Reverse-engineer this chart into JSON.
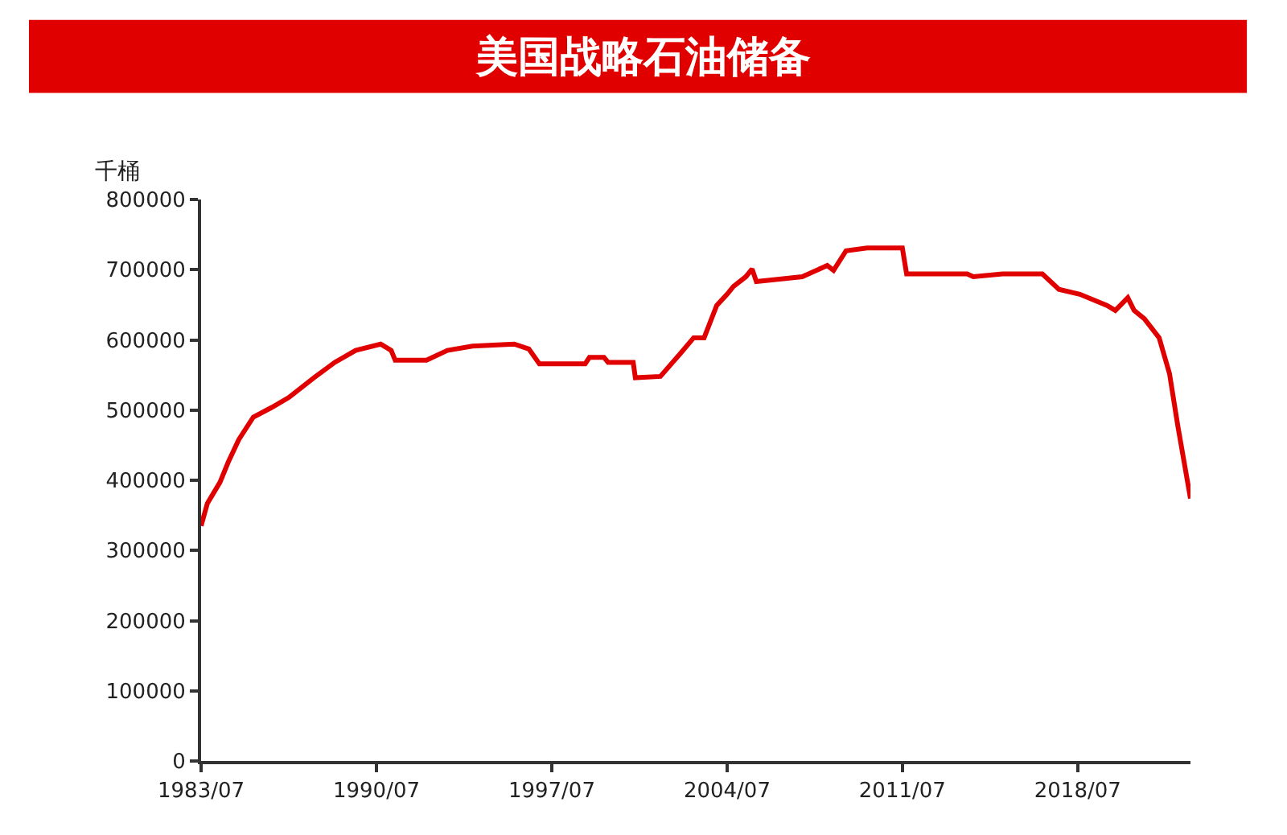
{
  "chart_data": {
    "type": "line",
    "title": "美国战略石油储备",
    "ylabel": "千桶",
    "x": [
      "1983-07",
      "1983-10",
      "1984-04",
      "1984-08",
      "1985-01",
      "1985-08",
      "1986-05",
      "1987-01",
      "1988-01",
      "1988-11",
      "1989-09",
      "1990-09",
      "1991-02",
      "1991-04",
      "1992-07",
      "1993-05",
      "1994-05",
      "1996-01",
      "1996-08",
      "1997-01",
      "1998-11",
      "1999-01",
      "1999-08",
      "1999-10",
      "2000-10",
      "2000-11",
      "2001-11",
      "2002-09",
      "2003-03",
      "2003-08",
      "2004-02",
      "2004-07",
      "2004-10",
      "2005-04",
      "2005-07",
      "2005-09",
      "2007-07",
      "2008-07",
      "2008-10",
      "2009-04",
      "2010-02",
      "2011-07",
      "2011-09",
      "2014-02",
      "2014-05",
      "2015-07",
      "2017-02",
      "2017-10",
      "2018-08",
      "2019-09",
      "2020-01",
      "2020-07",
      "2020-10",
      "2021-03",
      "2021-10",
      "2022-03",
      "2022-07",
      "2023-01"
    ],
    "series": [
      {
        "color": "#e00000",
        "values": [
          335000,
          367000,
          397000,
          426000,
          458000,
          490000,
          504000,
          518000,
          546000,
          568000,
          585000,
          594000,
          585000,
          571000,
          571000,
          585000,
          591000,
          594000,
          587000,
          566000,
          566000,
          575000,
          575000,
          568000,
          568000,
          546000,
          548000,
          582000,
          603000,
          603000,
          649000,
          665000,
          676000,
          690000,
          701000,
          683000,
          690000,
          706000,
          699000,
          727000,
          731000,
          731000,
          694000,
          694000,
          690000,
          694000,
          694000,
          672000,
          665000,
          649000,
          642000,
          660000,
          642000,
          630000,
          603000,
          552000,
          477000,
          374000
        ]
      }
    ],
    "xlim": [
      "1983-07",
      "2023-01"
    ],
    "xticks": [
      {
        "value": "1983-07",
        "label": "1983/07"
      },
      {
        "value": "1990-07",
        "label": "1990/07"
      },
      {
        "value": "1997-07",
        "label": "1997/07"
      },
      {
        "value": "2004-07",
        "label": "2004/07"
      },
      {
        "value": "2011-07",
        "label": "2011/07"
      },
      {
        "value": "2018-07",
        "label": "2018/07"
      }
    ],
    "ylim": [
      0,
      800000
    ],
    "yticks": [
      0,
      100000,
      200000,
      300000,
      400000,
      500000,
      600000,
      700000,
      800000
    ],
    "marker": "none",
    "line_style": "solid"
  }
}
